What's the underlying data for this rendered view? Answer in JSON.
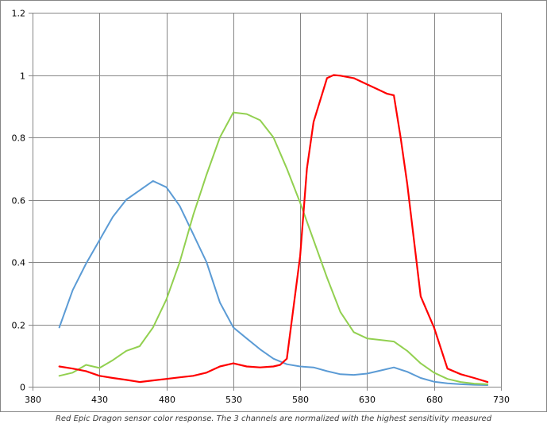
{
  "caption": "Red Epic Dragon sensor color response. The 3 channels are normalized with the highest sensitivity measured",
  "chart_data": {
    "type": "line",
    "title": "",
    "xlabel": "",
    "ylabel": "",
    "xlim": [
      380,
      730
    ],
    "ylim": [
      0,
      1.2
    ],
    "x_ticks": [
      380,
      430,
      480,
      530,
      580,
      630,
      680,
      730
    ],
    "y_ticks": [
      0,
      0.2,
      0.4,
      0.6,
      0.8,
      1,
      1.2
    ],
    "y_tick_labels": [
      "0",
      "0.2",
      "0.4",
      "0.6",
      "0.8",
      "1",
      "1.2"
    ],
    "grid": true,
    "legend": "none",
    "series": [
      {
        "color": "#5b9bd5",
        "x": [
          400,
          410,
          420,
          430,
          440,
          450,
          460,
          470,
          480,
          490,
          500,
          510,
          520,
          530,
          540,
          550,
          560,
          570,
          580,
          590,
          600,
          610,
          620,
          630,
          640,
          650,
          660,
          670,
          680,
          690,
          700,
          710,
          720
        ],
        "y": [
          0.19,
          0.31,
          0.395,
          0.47,
          0.545,
          0.6,
          0.63,
          0.66,
          0.64,
          0.58,
          0.49,
          0.4,
          0.27,
          0.19,
          0.155,
          0.12,
          0.09,
          0.072,
          0.065,
          0.062,
          0.05,
          0.04,
          0.038,
          0.042,
          0.052,
          0.062,
          0.048,
          0.028,
          0.016,
          0.011,
          0.008,
          0.006,
          0.005
        ]
      },
      {
        "color": "#92d050",
        "x": [
          400,
          410,
          420,
          430,
          440,
          450,
          460,
          470,
          480,
          490,
          500,
          510,
          520,
          530,
          540,
          550,
          560,
          570,
          580,
          590,
          600,
          610,
          620,
          630,
          640,
          650,
          660,
          670,
          680,
          690,
          700,
          710,
          720
        ],
        "y": [
          0.035,
          0.045,
          0.07,
          0.06,
          0.085,
          0.115,
          0.13,
          0.19,
          0.28,
          0.4,
          0.55,
          0.68,
          0.8,
          0.88,
          0.875,
          0.855,
          0.8,
          0.7,
          0.59,
          0.47,
          0.35,
          0.24,
          0.175,
          0.155,
          0.15,
          0.145,
          0.115,
          0.075,
          0.045,
          0.025,
          0.015,
          0.01,
          0.008
        ]
      },
      {
        "color": "#ff0000",
        "x": [
          400,
          410,
          420,
          430,
          440,
          450,
          460,
          470,
          480,
          490,
          500,
          510,
          520,
          530,
          540,
          550,
          560,
          565,
          570,
          580,
          585,
          590,
          600,
          605,
          610,
          620,
          630,
          640,
          645,
          650,
          655,
          660,
          670,
          680,
          690,
          700,
          710,
          720
        ],
        "y": [
          0.065,
          0.058,
          0.05,
          0.035,
          0.028,
          0.022,
          0.015,
          0.02,
          0.025,
          0.03,
          0.035,
          0.045,
          0.065,
          0.075,
          0.065,
          0.062,
          0.065,
          0.07,
          0.09,
          0.42,
          0.7,
          0.85,
          0.99,
          1.0,
          0.998,
          0.99,
          0.97,
          0.95,
          0.94,
          0.935,
          0.8,
          0.65,
          0.29,
          0.19,
          0.058,
          0.04,
          0.028,
          0.015
        ]
      }
    ]
  }
}
